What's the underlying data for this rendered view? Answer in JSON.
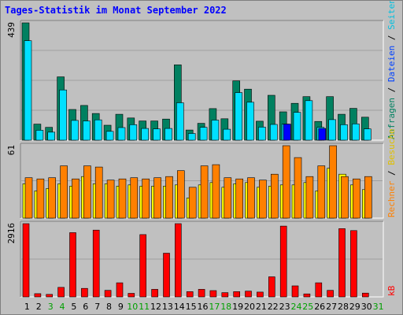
{
  "chart_data": {
    "type": "bar",
    "title": "Tages-Statistik im Monat September 2022",
    "categories": [
      "1",
      "2",
      "3",
      "4",
      "5",
      "6",
      "7",
      "8",
      "9",
      "10",
      "11",
      "12",
      "13",
      "14",
      "15",
      "16",
      "17",
      "18",
      "19",
      "20",
      "21",
      "22",
      "23",
      "24",
      "25",
      "26",
      "27",
      "28",
      "29",
      "30",
      "31"
    ],
    "weekend_days": [
      "3",
      "4",
      "10",
      "11",
      "17",
      "18",
      "24",
      "25",
      "31"
    ],
    "panels": [
      {
        "id": "requests",
        "max_label": "439",
        "ylim": [
          0,
          439
        ],
        "series": [
          {
            "name": "Anfragen",
            "color": "#008060",
            "values": [
              439,
              60,
              48,
              237,
              115,
              130,
              100,
              56,
              97,
              83,
              72,
              72,
              79,
              282,
              38,
              63,
              118,
              80,
              222,
              191,
              71,
              168,
              106,
              138,
              163,
              70,
              163,
              97,
              119,
              86,
              0
            ]
          },
          {
            "name": "Dateien",
            "color": "#00e0ff",
            "values": [
              372,
              37,
              30,
              188,
              74,
              72,
              76,
              33,
              47,
              58,
              44,
              42,
              44,
              140,
              25,
              48,
              75,
              41,
              178,
              142,
              49,
              59,
              60,
              104,
              148,
              48,
              77,
              58,
              61,
              42,
              0
            ]
          },
          {
            "name": "Seiten",
            "color": "#0000ff",
            "values": [
              0,
              0,
              0,
              0,
              0,
              0,
              0,
              0,
              0,
              0,
              0,
              0,
              0,
              0,
              0,
              0,
              0,
              0,
              0,
              0,
              0,
              0,
              60,
              0,
              0,
              44,
              0,
              0,
              0,
              0,
              0
            ]
          }
        ]
      },
      {
        "id": "visits",
        "max_label": "61",
        "ylim": [
          0,
          61
        ],
        "series": [
          {
            "name": "Besuche",
            "color": "#ffff00",
            "values": [
              29,
              23,
              25,
              29,
              27,
              35,
              29,
              29,
              27,
              28,
              27,
              27,
              27,
              28,
              17,
              28,
              30,
              26,
              29,
              30,
              26,
              27,
              28,
              28,
              30,
              23,
              42,
              37,
              28,
              24,
              0
            ]
          },
          {
            "name": "Rechner",
            "color": "#ff8000",
            "values": [
              34,
              33,
              34,
              44,
              33,
              44,
              43,
              32,
              33,
              34,
              33,
              34,
              35,
              40,
              26,
              44,
              45,
              34,
              33,
              34,
              32,
              37,
              61,
              51,
              35,
              44,
              61,
              35,
              33,
              35,
              0
            ]
          }
        ]
      },
      {
        "id": "kb",
        "max_label": "2916",
        "ylim": [
          0,
          2916
        ],
        "series": [
          {
            "name": "kB",
            "color": "#ff0000",
            "values": [
              2916,
              130,
              100,
              380,
              2560,
              340,
              2660,
              260,
              560,
              140,
              2480,
              300,
              1740,
              2916,
              210,
              300,
              250,
              170,
              210,
              230,
              190,
              800,
              2820,
              440,
              120,
              560,
              260,
              2720,
              2640,
              150,
              0
            ]
          }
        ]
      }
    ],
    "right_labels": [
      {
        "panel": "requests",
        "parts": [
          {
            "text": "Anfragen",
            "color": "#008060"
          },
          {
            "text": " / ",
            "color": "#000000"
          },
          {
            "text": "Dateien",
            "color": "#0040ff"
          },
          {
            "text": " / ",
            "color": "#000000"
          },
          {
            "text": "Seiten",
            "color": "#00c0e0"
          }
        ]
      },
      {
        "panel": "visits",
        "parts": [
          {
            "text": "Rechner",
            "color": "#ff8000"
          },
          {
            "text": " / ",
            "color": "#000000"
          },
          {
            "text": "Besuche",
            "color": "#e0c000"
          }
        ]
      },
      {
        "panel": "kb",
        "parts": [
          {
            "text": "kB",
            "color": "#ff0000"
          }
        ]
      }
    ],
    "colors": {
      "background": "#c0c0c0",
      "plot_background": "#c0c0c0",
      "title": "#0000ff",
      "weekday_label": "#000000",
      "weekend_label": "#00a000",
      "grid": "#a0a0a0"
    }
  }
}
